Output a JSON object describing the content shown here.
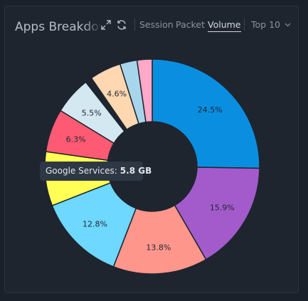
{
  "header": {
    "title": "Apps Breakdown",
    "tabs": [
      {
        "label": "Session",
        "active": false
      },
      {
        "label": "Packet",
        "active": false
      },
      {
        "label": "Volume",
        "active": true
      }
    ],
    "top_select": "Top 10"
  },
  "tooltip": {
    "label": "Google Services:",
    "value": "5.8 GB"
  },
  "chart_data": {
    "type": "pie",
    "donut": true,
    "slices": [
      {
        "value": 24.5,
        "label": "24.5%",
        "color": "#0a8fe0"
      },
      {
        "value": 15.9,
        "label": "15.9%",
        "color": "#a35bcc"
      },
      {
        "value": 13.8,
        "label": "13.8%",
        "color": "#ff968c"
      },
      {
        "value": 12.8,
        "label": "12.8%",
        "color": "#6ed8ff"
      },
      {
        "value": 7.9,
        "label": "",
        "color": "#ffff55"
      },
      {
        "value": 6.3,
        "label": "6.3%",
        "color": "#ff5a73"
      },
      {
        "value": 5.5,
        "label": "5.5%",
        "color": "#d3e8f0"
      },
      {
        "value": 1.0,
        "label": "",
        "color": "#1e252f"
      },
      {
        "value": 4.6,
        "label": "4.6%",
        "color": "#ffd7b0"
      },
      {
        "value": 2.5,
        "label": "",
        "color": "#a7d5ec"
      },
      {
        "value": 2.2,
        "label": "",
        "color": "#ffa8c8"
      }
    ]
  }
}
